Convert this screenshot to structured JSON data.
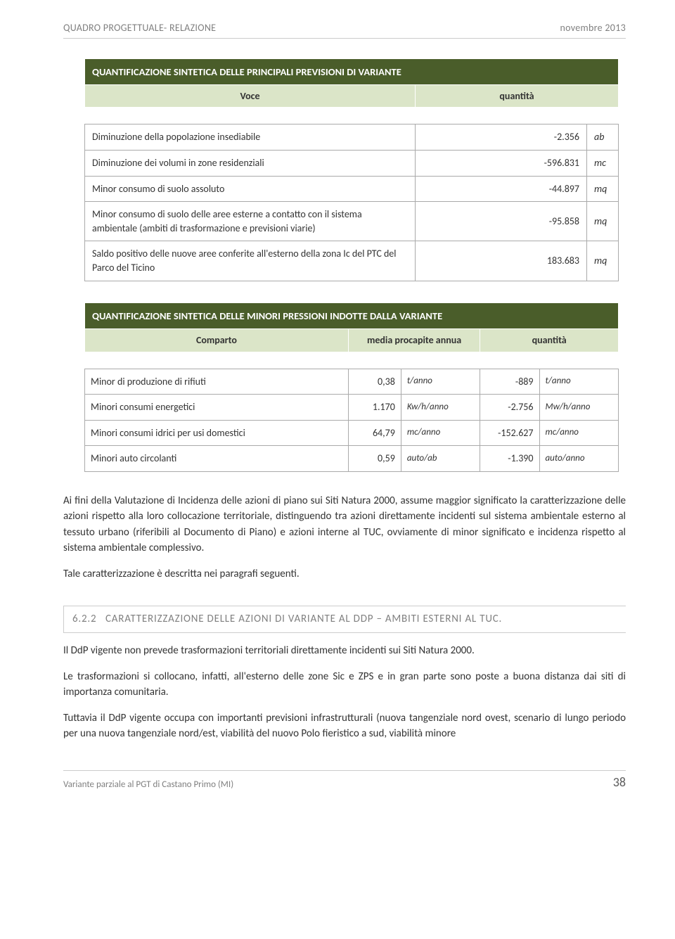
{
  "header": {
    "left": "QUADRO PROGETTUALE- RELAZIONE",
    "right": "novembre 2013"
  },
  "table1": {
    "title": "QUANTIFICAZIONE SINTETICA DELLE PRINCIPALI PREVISIONI DI VARIANTE",
    "col_voce": "Voce",
    "col_quantita": "quantità",
    "rows": [
      {
        "label": "Diminuzione della popolazione insediabile",
        "value": "-2.356",
        "unit": "ab"
      },
      {
        "label": "Diminuzione dei volumi in zone residenziali",
        "value": "-596.831",
        "unit": "mc"
      },
      {
        "label": "Minor consumo di suolo assoluto",
        "value": "-44.897",
        "unit": "mq"
      },
      {
        "label": "Minor consumo di suolo delle aree esterne a contatto con il sistema ambientale (ambiti di trasformazione e previsioni viarie)",
        "value": "-95.858",
        "unit": "mq"
      },
      {
        "label": "Saldo positivo delle nuove aree conferite all'esterno della zona Ic del PTC del Parco del Ticino",
        "value": "183.683",
        "unit": "mq"
      }
    ]
  },
  "table2": {
    "title": "QUANTIFICAZIONE SINTETICA DELLE MINORI PRESSIONI INDOTTE DALLA VARIANTE",
    "col_comparto": "Comparto",
    "col_media": "media procapite annua",
    "col_quantita": "quantità",
    "rows": [
      {
        "label": "Minor di produzione di rifiuti",
        "v1": "0,38",
        "u1": "t/anno",
        "v2": "-889",
        "u2": "t/anno"
      },
      {
        "label": "Minori consumi energetici",
        "v1": "1.170",
        "u1": "Kw/h/anno",
        "v2": "-2.756",
        "u2": "Mw/h/anno"
      },
      {
        "label": "Minori consumi idrici per usi domestici",
        "v1": "64,79",
        "u1": "mc/anno",
        "v2": "-152.627",
        "u2": "mc/anno"
      },
      {
        "label": "Minori auto circolanti",
        "v1": "0,59",
        "u1": "auto/ab",
        "v2": "-1.390",
        "u2": "auto/anno"
      }
    ]
  },
  "paragraphs": {
    "p1": "Ai fini della Valutazione di Incidenza delle azioni di piano sui Siti Natura 2000, assume maggior significato la caratterizzazione delle azioni rispetto alla loro collocazione territoriale, distinguendo tra azioni direttamente incidenti sul sistema ambientale esterno al tessuto urbano (riferibili al Documento di Piano) e azioni interne al TUC, ovviamente di minor significato e incidenza rispetto al sistema ambientale complessivo.",
    "p2": "Tale caratterizzazione è descritta nei paragrafi seguenti.",
    "p3": "Il DdP vigente non prevede trasformazioni territoriali direttamente incidenti sui Siti Natura 2000.",
    "p4": "Le trasformazioni si collocano, infatti, all'esterno delle zone Sic e ZPS e in gran parte sono poste a buona distanza dai siti di importanza comunitaria.",
    "p5": "Tuttavia il DdP vigente occupa con importanti previsioni infrastrutturali (nuova tangenziale nord ovest, scenario di lungo periodo per una nuova tangenziale nord/est, viabilità del nuovo Polo fieristico a sud, viabilità minore"
  },
  "section": {
    "number": "6.2.2",
    "title": "CARATTERIZZAZIONE DELLE AZIONI DI VARIANTE AL DDP – AMBITI ESTERNI AL TUC."
  },
  "footer": {
    "left": "Variante parziale al PGT di Castano Primo (MI)",
    "page": "38"
  },
  "colors": {
    "header_bg": "#4a5d2a",
    "subhead_bg": "#dbe5c8",
    "border": "#aaaaaa",
    "text_muted": "#808080"
  }
}
